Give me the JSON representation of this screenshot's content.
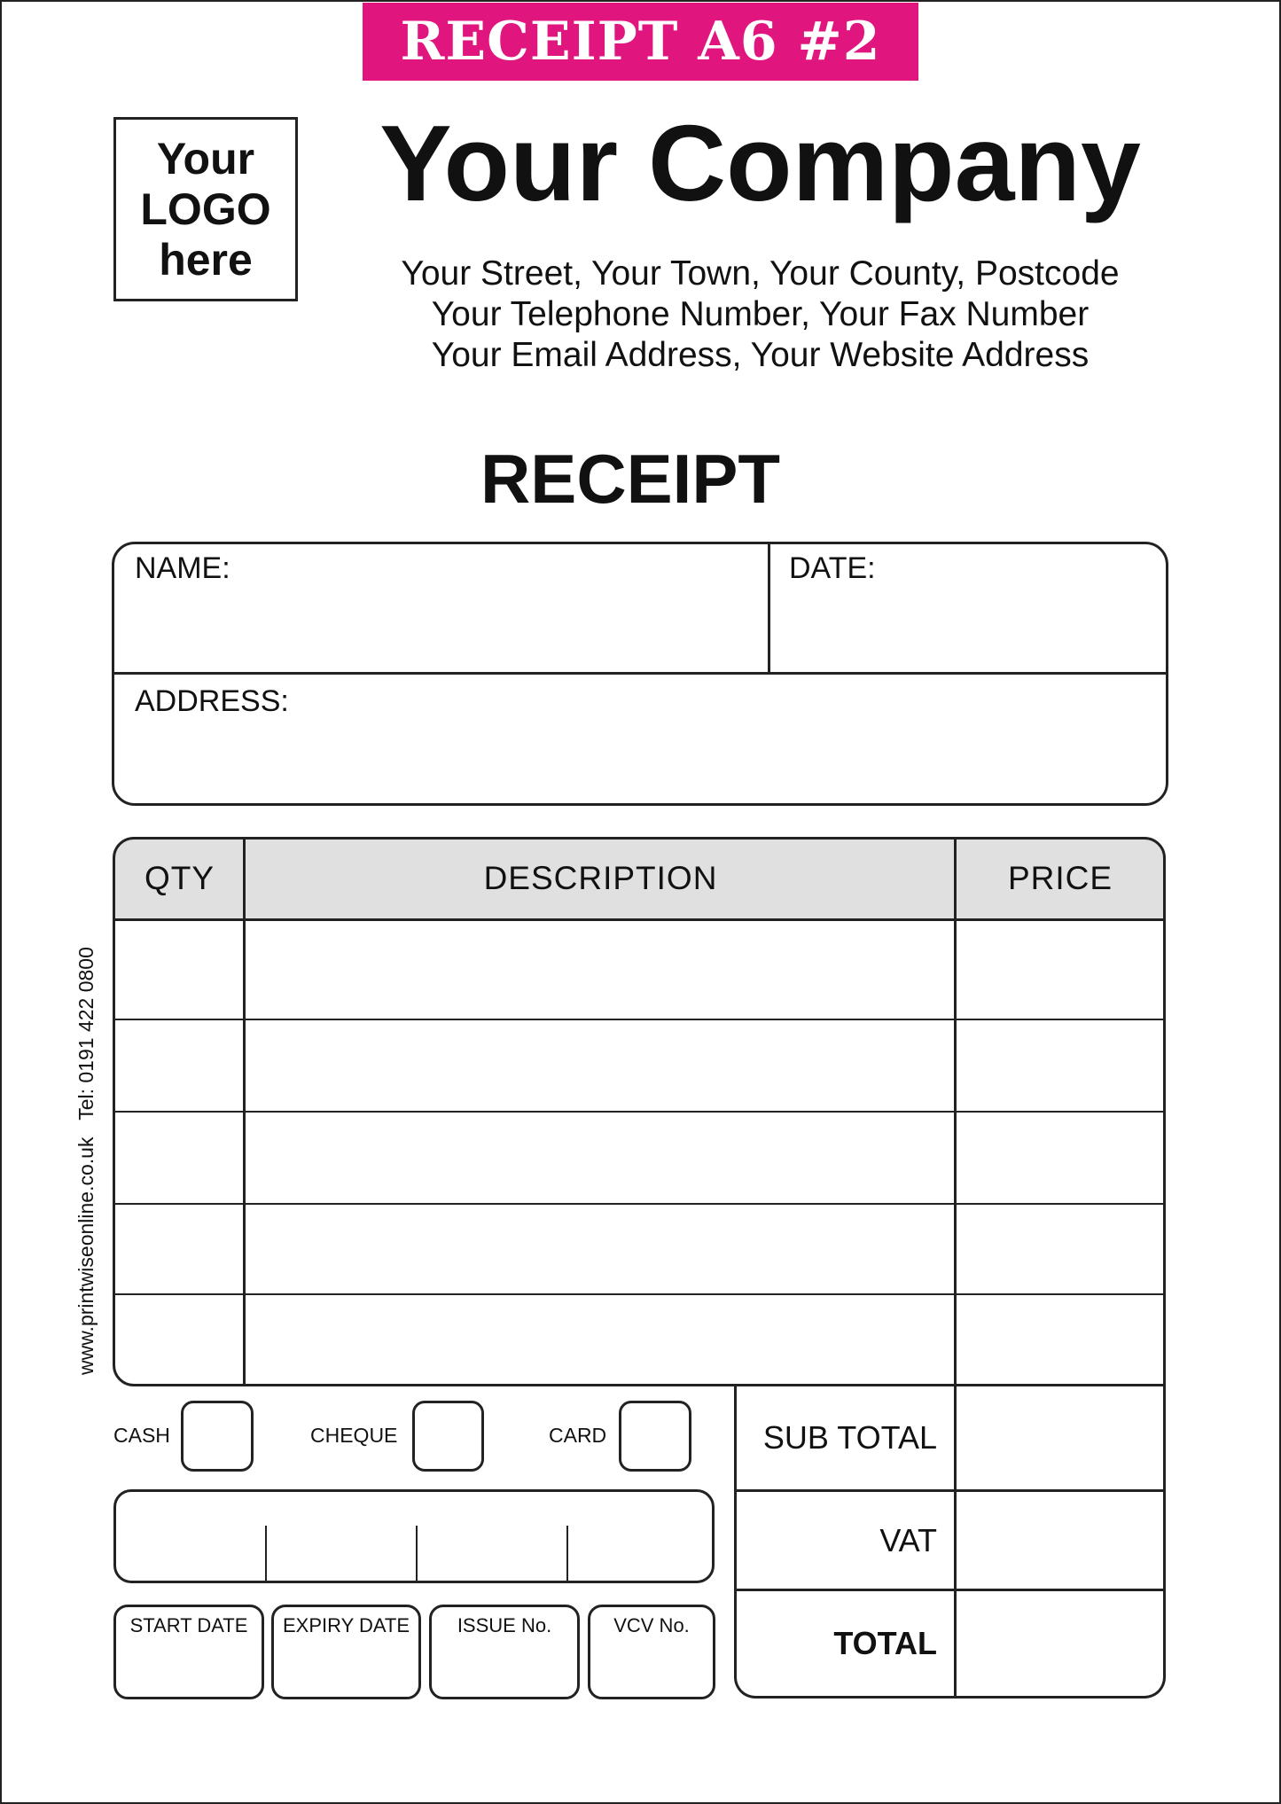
{
  "banner": {
    "text": "RECEIPT A6 #2",
    "color": "#e0157e"
  },
  "logo": {
    "lines": [
      "Your",
      "LOGO",
      "here"
    ]
  },
  "company": {
    "name": "Your Company",
    "address_lines": [
      "Your Street, Your Town, Your County, Postcode",
      "Your Telephone Number, Your Fax Number",
      "Your Email Address, Your Website Address"
    ]
  },
  "title": "RECEIPT",
  "customer": {
    "name_label": "NAME:",
    "date_label": "DATE:",
    "address_label": "ADDRESS:"
  },
  "items_table": {
    "headers": [
      "QTY",
      "DESCRIPTION",
      "PRICE"
    ],
    "header_bg": "#e0e0e0",
    "rows": [
      [
        "",
        "",
        ""
      ],
      [
        "",
        "",
        ""
      ],
      [
        "",
        "",
        ""
      ],
      [
        "",
        "",
        ""
      ],
      [
        "",
        "",
        ""
      ]
    ]
  },
  "payment": {
    "cash": "CASH",
    "cheque": "CHEQUE",
    "card": "CARD"
  },
  "card_fields": [
    "START DATE",
    "EXPIRY DATE",
    "ISSUE No.",
    "VCV No."
  ],
  "totals": {
    "sub_total": "SUB TOTAL",
    "vat": "VAT",
    "total": "TOTAL"
  },
  "side_text": "www.printwiseonline.co.uk   Tel: 0191 422 0800"
}
